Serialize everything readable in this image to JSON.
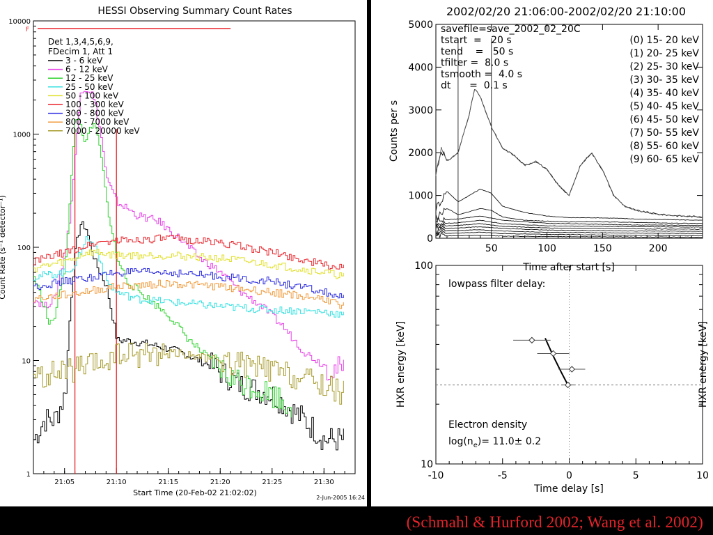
{
  "left_chart": {
    "title": "HESSI Observing Summary Count Rates",
    "xlabel": "Start Time (20-Feb-02 21:02:02)",
    "ylabel": "Count Rate (s⁻¹ detector⁻¹)",
    "footer_date": "2-Jun-2005 16:24",
    "ytick_labels": [
      "10000",
      "1000",
      "100",
      "10",
      "1"
    ],
    "xtick_labels": [
      "21:05",
      "21:10",
      "21:15",
      "21:20",
      "21:25",
      "21:30"
    ],
    "legend_header": [
      "Det 1,3,4,5,6,9,",
      "FDecim 1, Att 1"
    ],
    "flag_marker": "F",
    "colors": {
      "vline": "#e8232a",
      "flag_line": "#e8232a"
    }
  },
  "right_top": {
    "title": "2002/02/20 21:06:00-2002/02/20 21:10:00",
    "ylabel": "Counts per s",
    "xlabel": "Time after start [s]",
    "ytick_labels": [
      "5000",
      "4000",
      "3000",
      "2000",
      "1000",
      "0"
    ],
    "xtick_labels": [
      "50",
      "100",
      "150",
      "200"
    ],
    "params": [
      "savefile=save_2002_02_20C",
      "tstart  =   20 s",
      "tend    =   50 s",
      "tfilter =  8.0 s",
      "tsmooth =  4.0 s",
      "dt      =  0.1 s"
    ],
    "energy_bands": [
      "(0)  15- 20 keV",
      "(1)  20- 25 keV",
      "(2)  25- 30 keV",
      "(3)  30- 35 keV",
      "(4)  35- 40 keV",
      "(5)  40- 45 keV",
      "(6)  45- 50 keV",
      "(7)  50- 55 keV",
      "(8)  55- 60 keV",
      "(9)  60- 65 keV"
    ]
  },
  "right_bottom": {
    "ylabel_left": "HXR energy [keV]",
    "ylabel_right": "HXR energy [keV]",
    "xlabel": "Time delay [s]",
    "ytick_labels": [
      "100",
      "10"
    ],
    "xtick_labels": [
      "-10",
      "-5",
      "0",
      "5",
      "10"
    ],
    "annotation_title": "lowpass filter delay:",
    "density_title": "Electron density",
    "density_prefix": "log(n",
    "density_sub": "e",
    "density_value": ")=  11.0±  0.2"
  },
  "credit": "(Schmahl & Hurford 2002; Wang et al. 2002)",
  "chart_data": [
    {
      "type": "line",
      "title": "HESSI Observing Summary Count Rates",
      "xlabel": "Start Time (20-Feb-02 21:02:02)",
      "ylabel": "Count Rate (s⁻¹ detector⁻¹)",
      "yscale": "log",
      "ylim": [
        1,
        10000
      ],
      "xlim": [
        "21:02",
        "21:33"
      ],
      "vlines": [
        "21:06",
        "21:10"
      ],
      "grid": false,
      "legend_position": "top-left",
      "series": [
        {
          "name": "3 - 6 keV",
          "color": "#000000",
          "x": [
            "21:02",
            "21:03",
            "21:04",
            "21:05",
            "21:05:30",
            "21:06",
            "21:06:30",
            "21:07",
            "21:07:30",
            "21:08",
            "21:09",
            "21:10",
            "21:11",
            "21:13",
            "21:16",
            "21:19",
            "21:22",
            "21:25",
            "21:28",
            "21:30",
            "21:31",
            "21:32"
          ],
          "y": [
            2,
            3,
            3,
            5,
            30,
            100,
            160,
            150,
            100,
            70,
            45,
            15,
            15,
            14,
            12,
            9,
            6,
            5,
            3,
            2,
            2,
            2
          ]
        },
        {
          "name": "6 - 12 keV",
          "color": "#e640e6",
          "x": [
            "21:02",
            "21:03",
            "21:04",
            "21:05",
            "21:05:30",
            "21:06",
            "21:06:30",
            "21:07",
            "21:07:30",
            "21:08",
            "21:08:30",
            "21:09",
            "21:10",
            "21:11",
            "21:12",
            "21:14",
            "21:16",
            "21:18",
            "21:20",
            "21:22",
            "21:24",
            "21:26",
            "21:28",
            "21:30",
            "21:32"
          ],
          "y": [
            35,
            30,
            35,
            90,
            200,
            700,
            2500,
            2500,
            2400,
            1700,
            900,
            400,
            250,
            220,
            190,
            170,
            120,
            80,
            60,
            40,
            30,
            20,
            12,
            9,
            8
          ]
        },
        {
          "name": "12 - 25 keV",
          "color": "#2dd22d",
          "x": [
            "21:02",
            "21:03",
            "21:03:30",
            "21:04",
            "21:04:30",
            "21:05",
            "21:05:30",
            "21:06",
            "21:06:30",
            "21:07",
            "21:07:30",
            "21:08",
            "21:08:30",
            "21:09",
            "21:10",
            "21:11",
            "21:13",
            "21:15",
            "21:17",
            "21:19",
            "21:21",
            "21:23",
            "21:25",
            "21:27"
          ],
          "y": [
            55,
            30,
            20,
            25,
            40,
            70,
            300,
            1500,
            1200,
            800,
            1200,
            1100,
            600,
            250,
            80,
            50,
            35,
            25,
            15,
            10,
            7,
            6,
            5,
            4
          ]
        },
        {
          "name": "25 - 50 keV",
          "color": "#33e0e0",
          "x": [
            "21:02",
            "21:05",
            "21:06",
            "21:07",
            "21:08",
            "21:09",
            "21:10",
            "21:12",
            "21:15",
            "21:20",
            "21:25",
            "21:30",
            "21:32"
          ],
          "y": [
            55,
            60,
            70,
            120,
            100,
            50,
            40,
            35,
            33,
            30,
            28,
            27,
            25
          ]
        },
        {
          "name": "50 - 100 keV",
          "color": "#e0e02a",
          "x": [
            "21:02",
            "21:05",
            "21:06",
            "21:07",
            "21:08",
            "21:10",
            "21:15",
            "21:20",
            "21:25",
            "21:30",
            "21:32"
          ],
          "y": [
            65,
            75,
            80,
            90,
            90,
            85,
            85,
            80,
            70,
            60,
            55
          ]
        },
        {
          "name": "100 - 300 keV",
          "color": "#e8232a",
          "x": [
            "21:02",
            "21:05",
            "21:08",
            "21:10",
            "21:15",
            "21:20",
            "21:25",
            "21:30",
            "21:32"
          ],
          "y": [
            75,
            90,
            110,
            115,
            120,
            110,
            90,
            70,
            65
          ]
        },
        {
          "name": "300 - 800 keV",
          "color": "#2a2ae0",
          "x": [
            "21:02",
            "21:05",
            "21:08",
            "21:10",
            "21:15",
            "21:20",
            "21:25",
            "21:30",
            "21:32"
          ],
          "y": [
            45,
            50,
            55,
            60,
            60,
            55,
            50,
            40,
            35
          ]
        },
        {
          "name": "800 - 7000 keV",
          "color": "#f09a3a",
          "x": [
            "21:02",
            "21:05",
            "21:08",
            "21:10",
            "21:15",
            "21:20",
            "21:25",
            "21:30",
            "21:32"
          ],
          "y": [
            35,
            38,
            42,
            45,
            48,
            45,
            40,
            35,
            30
          ]
        },
        {
          "name": "7000 - 20000 keV",
          "color": "#a59a2a",
          "x": [
            "21:02",
            "21:05",
            "21:08",
            "21:10",
            "21:15",
            "21:20",
            "21:25",
            "21:30",
            "21:32"
          ],
          "y": [
            7,
            8,
            9,
            11,
            12,
            10,
            8,
            6,
            5
          ]
        }
      ]
    },
    {
      "type": "line",
      "title": "2002/02/20 21:06:00-2002/02/20 21:10:00",
      "xlabel": "Time after start [s]",
      "ylabel": "Counts per s",
      "xlim": [
        0,
        240
      ],
      "ylim": [
        0,
        5000
      ],
      "vlines": [
        20,
        50
      ],
      "grid": false,
      "legend_position": "top-right",
      "series": [
        {
          "x": [
            0,
            5,
            10,
            20,
            30,
            35,
            40,
            50,
            60,
            70,
            80,
            90,
            100,
            110,
            120,
            130,
            140,
            150,
            160,
            170,
            180,
            200,
            220,
            240
          ],
          "y": [
            1500,
            2100,
            1800,
            2000,
            2900,
            3500,
            3300,
            2600,
            2100,
            1950,
            1700,
            1800,
            1600,
            1250,
            1000,
            1700,
            2000,
            1600,
            1000,
            750,
            650,
            560,
            520,
            500
          ]
        },
        {
          "x": [
            0,
            10,
            20,
            30,
            40,
            50,
            60,
            80,
            100,
            120,
            140,
            160,
            180,
            200,
            220,
            240
          ],
          "y": [
            700,
            1100,
            850,
            1000,
            1150,
            1050,
            750,
            600,
            520,
            480,
            480,
            470,
            450,
            440,
            430,
            420
          ]
        },
        {
          "x": [
            0,
            10,
            20,
            30,
            40,
            50,
            60,
            80,
            100,
            120,
            140,
            160,
            180,
            200,
            220,
            240
          ],
          "y": [
            500,
            700,
            550,
            620,
            700,
            650,
            500,
            420,
            400,
            380,
            390,
            380,
            370,
            360,
            350,
            350
          ]
        },
        {
          "x": [
            0,
            20,
            40,
            60,
            100,
            140,
            180,
            240
          ],
          "y": [
            420,
            450,
            520,
            420,
            350,
            330,
            310,
            300
          ]
        },
        {
          "x": [
            0,
            20,
            40,
            60,
            100,
            140,
            180,
            240
          ],
          "y": [
            340,
            360,
            420,
            340,
            290,
            280,
            270,
            260
          ]
        },
        {
          "x": [
            0,
            20,
            40,
            60,
            100,
            140,
            180,
            240
          ],
          "y": [
            280,
            300,
            340,
            280,
            240,
            230,
            220,
            210
          ]
        },
        {
          "x": [
            0,
            20,
            40,
            60,
            100,
            140,
            180,
            240
          ],
          "y": [
            220,
            240,
            270,
            230,
            190,
            180,
            170,
            160
          ]
        },
        {
          "x": [
            0,
            20,
            40,
            60,
            100,
            140,
            180,
            240
          ],
          "y": [
            170,
            180,
            200,
            170,
            140,
            130,
            120,
            110
          ]
        },
        {
          "x": [
            0,
            20,
            40,
            60,
            100,
            140,
            180,
            240
          ],
          "y": [
            110,
            120,
            140,
            110,
            90,
            80,
            70,
            60
          ]
        },
        {
          "x": [
            0,
            20,
            40,
            60,
            100,
            140,
            180,
            240
          ],
          "y": [
            50,
            60,
            70,
            50,
            40,
            35,
            30,
            25
          ]
        }
      ]
    },
    {
      "type": "scatter",
      "title": "lowpass filter delay:",
      "xlabel": "Time delay [s]",
      "ylabel": "HXR energy [keV]",
      "yscale": "log",
      "xlim": [
        -10,
        10
      ],
      "ylim": [
        10,
        100
      ],
      "reference_lines": {
        "x": 0,
        "y": 25
      },
      "points": [
        {
          "x": -2.8,
          "y": 42,
          "xerr": 1.4
        },
        {
          "x": -1.2,
          "y": 36,
          "xerr": 1.2
        },
        {
          "x": 0.2,
          "y": 30,
          "xerr": 1.0
        },
        {
          "x": -0.1,
          "y": 25,
          "xerr": 0.5
        }
      ],
      "fit_curve": {
        "x": [
          -1.8,
          -1.2,
          -0.6,
          -0.1
        ],
        "y": [
          43,
          35,
          29,
          25
        ]
      },
      "electron_density_log_ne": 11.0,
      "electron_density_err": 0.2
    }
  ]
}
